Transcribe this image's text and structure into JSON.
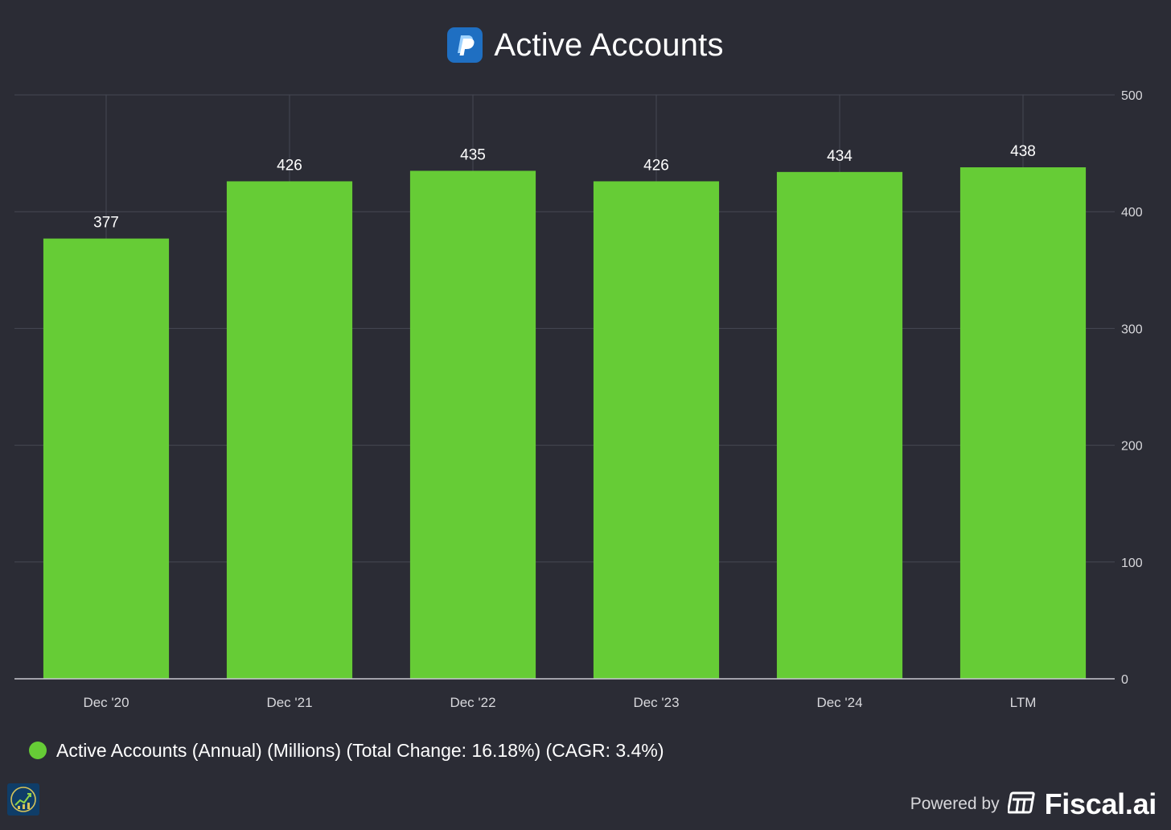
{
  "header": {
    "title": "Active Accounts",
    "logo_icon": "paypal-logo-icon"
  },
  "chart_data": {
    "type": "bar",
    "title": "Active Accounts",
    "categories": [
      "Dec '20",
      "Dec '21",
      "Dec '22",
      "Dec '23",
      "Dec '24",
      "LTM"
    ],
    "series": [
      {
        "name": "Active Accounts (Annual) (Millions) (Total Change: 16.18%) (CAGR: 3.4%)",
        "values": [
          377,
          426,
          435,
          426,
          434,
          438
        ],
        "color": "#66cc36"
      }
    ],
    "data_labels": [
      "377",
      "426",
      "435",
      "426",
      "434",
      "438"
    ],
    "xlabel": "",
    "ylabel": "",
    "ylim": [
      0,
      500
    ],
    "yticks": [
      0,
      100,
      200,
      300,
      400,
      500
    ],
    "y_axis_side": "right",
    "grid": true
  },
  "legend": {
    "label": "Active Accounts (Annual) (Millions) (Total Change: 16.18%) (CAGR: 3.4%)",
    "color": "#66cc36"
  },
  "footer": {
    "powered_by": "Powered by",
    "brand": "Fiscal.ai",
    "badge_icon": "chart-growth-badge-icon"
  },
  "colors": {
    "background": "#2b2c35",
    "grid": "#464853",
    "bar": "#66cc36",
    "text": "#ffffff",
    "tick_text": "#d8d8dc"
  }
}
